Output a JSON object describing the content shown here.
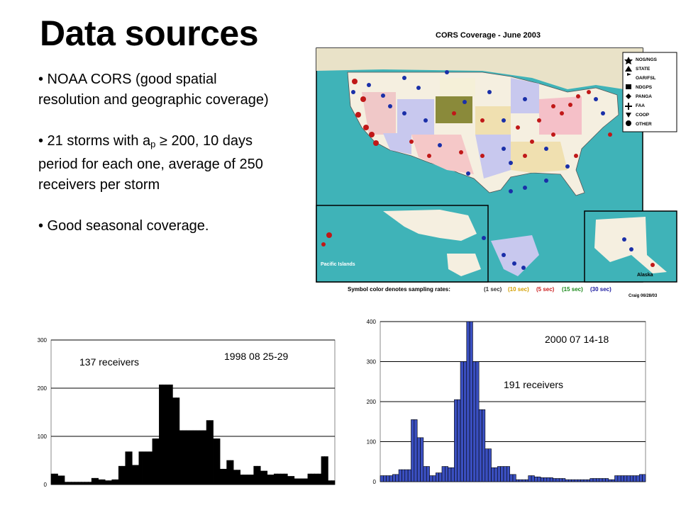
{
  "slide": {
    "title": "Data sources",
    "bullet1": "• NOAA CORS (good spatial resolution and geographic coverage)",
    "bullet2_a": "• 21 storms with   a",
    "bullet2_sub": "p",
    "bullet2_b": " ≥ 200, 10 days period for each one, average of 250  receivers per  storm",
    "bullet3": "• Good seasonal coverage."
  },
  "map": {
    "title": "CORS Coverage - June 2003",
    "legend": [
      "NOS/NGS",
      "STATE",
      "OAR/FSL",
      "NDGPS",
      "PANGA",
      "FAA",
      "COOP",
      "OTHER"
    ],
    "inset_pacific": "Pacific Islands",
    "inset_alaska": "Alaska",
    "caption": "Symbol color denotes sampling rates:",
    "rates": [
      {
        "label": "(1 sec)",
        "color": "#333333"
      },
      {
        "label": "(10 sec)",
        "color": "#d4a000"
      },
      {
        "label": "(5 sec)",
        "color": "#cc2020"
      },
      {
        "label": "(15 sec)",
        "color": "#1a8a1a"
      },
      {
        "label": "(30 sec)",
        "color": "#1a1aa0"
      }
    ],
    "credit": "Craig 06/28/03",
    "colors": {
      "ocean": "#3fb3b8",
      "land_base": "#f5efe0",
      "nos": "#1a2fa8",
      "red": "#cc2020"
    }
  },
  "chart_data": [
    {
      "type": "bar",
      "title": "1998 08 25-29",
      "annotation": "137 receivers",
      "ylim": [
        0,
        300
      ],
      "yticks": [
        0,
        100,
        200,
        300
      ],
      "bar_color": "#000000",
      "values": [
        22,
        22,
        18,
        18,
        5,
        5,
        5,
        5,
        5,
        5,
        5,
        5,
        13,
        13,
        10,
        10,
        8,
        8,
        10,
        10,
        38,
        38,
        68,
        68,
        40,
        40,
        68,
        68,
        68,
        68,
        95,
        95,
        207,
        207,
        207,
        207,
        180,
        180,
        112,
        112,
        112,
        112,
        112,
        112,
        112,
        112,
        133,
        133,
        95,
        95,
        32,
        32,
        50,
        50,
        30,
        30,
        20,
        20,
        20,
        20,
        38,
        38,
        28,
        28,
        20,
        20,
        22,
        22,
        22,
        22,
        17,
        17,
        12,
        12,
        12,
        12,
        22,
        22,
        22,
        22,
        58,
        58,
        8,
        8
      ]
    },
    {
      "type": "bar",
      "title": "2000 07 14-18",
      "annotation": "191 receivers",
      "ylim": [
        0,
        400
      ],
      "yticks": [
        0,
        100,
        200,
        300,
        400
      ],
      "bar_color": "#3a4fc0",
      "values": [
        15,
        15,
        15,
        15,
        18,
        18,
        30,
        30,
        30,
        30,
        155,
        155,
        110,
        110,
        38,
        38,
        15,
        15,
        22,
        22,
        38,
        38,
        35,
        35,
        205,
        205,
        300,
        300,
        400,
        400,
        300,
        300,
        180,
        180,
        82,
        82,
        35,
        35,
        38,
        38,
        38,
        38,
        18,
        18,
        5,
        5,
        5,
        5,
        15,
        15,
        12,
        12,
        10,
        10,
        10,
        10,
        8,
        8,
        8,
        8,
        5,
        5,
        5,
        5,
        5,
        5,
        5,
        5,
        8,
        8,
        8,
        8,
        8,
        8,
        5,
        5,
        15,
        15,
        15,
        15,
        15,
        15,
        15,
        15,
        18,
        18
      ]
    }
  ]
}
